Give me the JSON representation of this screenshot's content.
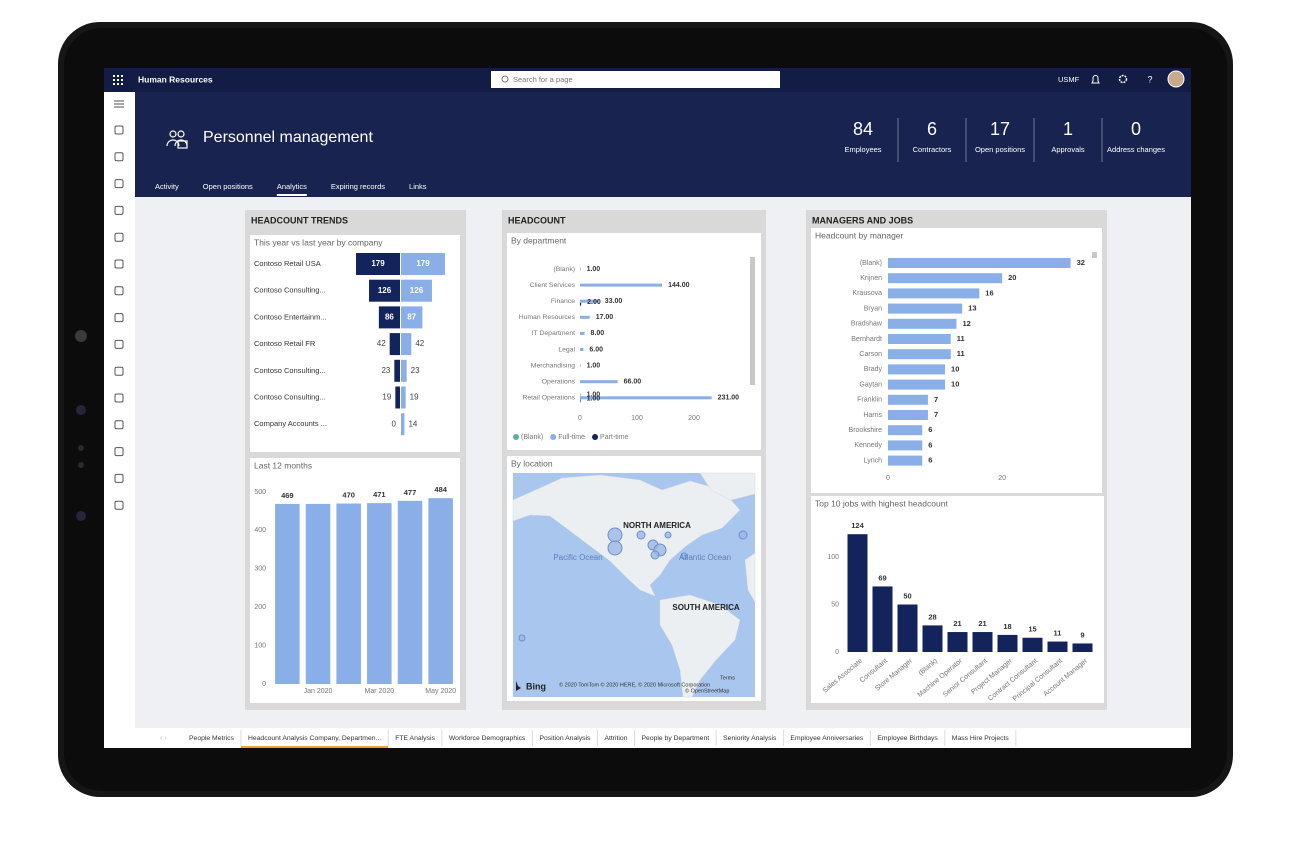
{
  "app": {
    "title": "Human Resources",
    "search": "Search for a page",
    "company": "USMF"
  },
  "header": {
    "title": "Personnel management",
    "kpis": [
      {
        "value": 84,
        "label": "Employees"
      },
      {
        "value": 6,
        "label": "Contractors"
      },
      {
        "value": 17,
        "label": "Open positions"
      },
      {
        "value": 1,
        "label": "Approvals"
      },
      {
        "value": 0,
        "label": "Address changes"
      }
    ]
  },
  "tabs": [
    "Activity",
    "Open positions",
    "Analytics",
    "Expiring records",
    "Links"
  ],
  "report_tabs": [
    "People Metrics",
    "Headcount Analysis Company, Departmen...",
    "FTE Analysis",
    "Workforce Demographics",
    "Position Analysis",
    "Attrition",
    "People by Department",
    "Seniority Analysis",
    "Employee Anniversaries",
    "Employee Birthdays",
    "Mass Hire Projects"
  ],
  "panels": [
    {
      "title": "HEADCOUNT TRENDS"
    },
    {
      "title": "HEADCOUNT"
    },
    {
      "title": "MANAGERS AND JOBS"
    }
  ],
  "chart_data": [
    {
      "type": "diverging-bar",
      "title": "This year vs last year by company",
      "categories": [
        "Contoso Retail USA",
        "Contoso Consulting...",
        "Contoso Entertainm...",
        "Contoso Retail FR",
        "Contoso Consulting...",
        "Contoso Consulting...",
        "Company Accounts ..."
      ],
      "series": [
        {
          "color": "#13235b",
          "values": [
            179,
            126,
            86,
            42,
            23,
            19,
            0
          ]
        },
        {
          "color": "#8aaee8",
          "values": [
            179,
            126,
            87,
            42,
            23,
            19,
            14
          ]
        }
      ]
    },
    {
      "type": "column",
      "title": "Last 12 months",
      "categories": [
        null,
        "Jan 2020",
        null,
        "Mar 2020",
        null,
        "May 2020"
      ],
      "values": [
        469,
        469,
        470,
        471,
        477,
        484
      ],
      "value_labels": [
        "469",
        null,
        "470",
        "471",
        "477",
        "484"
      ],
      "color": "#8aaee8",
      "ylim": [
        0,
        500
      ],
      "yticks": [
        0,
        100,
        200,
        300,
        400,
        500
      ]
    },
    {
      "type": "grouped-hbar",
      "title": "By department",
      "categories": [
        "(Blank)",
        "Client Services",
        "Finance",
        "Human Resources",
        "IT Department",
        "Legal",
        "Merchandising",
        "Operations",
        "Retail Operations"
      ],
      "series": [
        {
          "name": "(Blank)",
          "color": "#5aaea6",
          "values": [
            null,
            null,
            null,
            null,
            null,
            null,
            null,
            null,
            1
          ],
          "value_labels": [
            null,
            null,
            null,
            null,
            null,
            null,
            null,
            null,
            "1.00"
          ]
        },
        {
          "name": "Full-time",
          "color": "#8aaee8",
          "values": [
            1,
            144,
            33,
            17,
            8,
            6,
            1,
            66,
            231
          ],
          "value_labels": [
            "1.00",
            "144.00",
            "33.00",
            "17.00",
            "8.00",
            "6.00",
            "1.00",
            "66.00",
            "231.00"
          ]
        },
        {
          "name": "Part-time",
          "color": "#13235b",
          "values": [
            null,
            null,
            2,
            null,
            null,
            null,
            null,
            null,
            1
          ],
          "value_labels": [
            null,
            null,
            "2.00",
            null,
            null,
            null,
            null,
            null,
            "1.00"
          ]
        }
      ],
      "xlim": [
        0,
        250
      ],
      "xticks": [
        0,
        100,
        200
      ],
      "legend": "bottom-left"
    },
    {
      "type": "map",
      "title": "By location",
      "labels": [
        "NORTH AMERICA",
        "SOUTH AMERICA",
        "Pacific Ocean",
        "Atlantic Ocean"
      ],
      "logo": "Bing",
      "attribution": "© 2020 TomTom © 2020 HERE, © 2020 Microsoft Corporation",
      "terms": "Terms",
      "osm": "© OpenStreetMap"
    },
    {
      "type": "hbar",
      "title": "Headcount by manager",
      "categories": [
        "(Blank)",
        "Krijnen",
        "Krausova",
        "Bryan",
        "Bradshaw",
        "Bernhardt",
        "Carson",
        "Brady",
        "Gaytan",
        "Franklin",
        "Harris",
        "Brookshire",
        "Kennedy",
        "Lynch"
      ],
      "values": [
        32,
        20,
        16,
        13,
        12,
        11,
        11,
        10,
        10,
        7,
        7,
        6,
        6,
        6
      ],
      "color": "#8aaee8",
      "xlim": [
        0,
        34
      ],
      "xticks": [
        0,
        20
      ]
    },
    {
      "type": "column",
      "title": "Top 10 jobs with highest headcount",
      "categories": [
        "Sales Associate",
        "Consultant",
        "Store Manager",
        "(Blank)",
        "Machine Operator",
        "Senior Consultant",
        "Project Manager",
        "Contract Consultant",
        "Principal Consultant",
        "Account Manager"
      ],
      "values": [
        124,
        69,
        50,
        28,
        21,
        21,
        18,
        15,
        11,
        9
      ],
      "color": "#13235b",
      "ylim": [
        0,
        140
      ],
      "yticks": [
        0,
        50,
        100
      ],
      "rotate_labels": true
    }
  ]
}
